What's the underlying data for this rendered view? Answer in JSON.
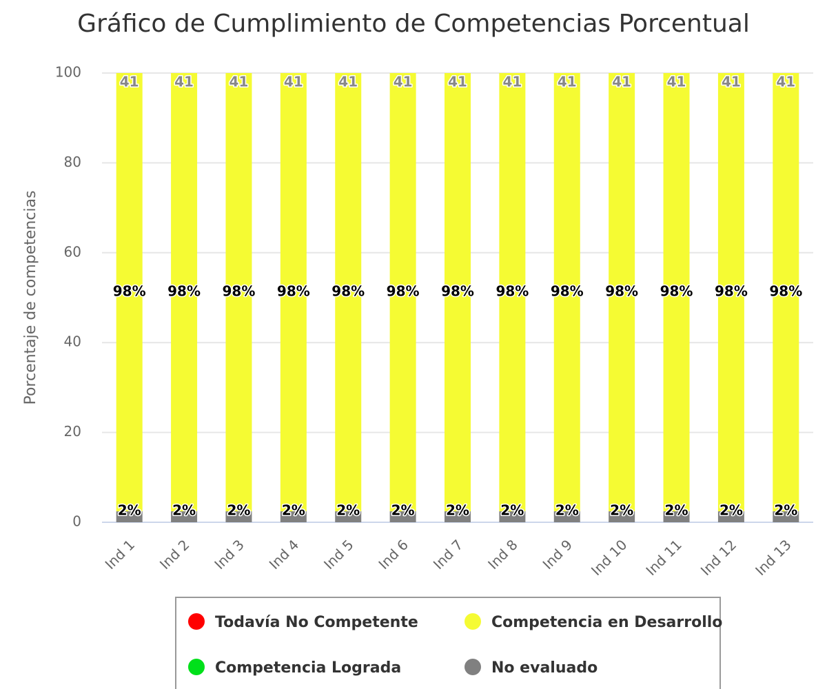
{
  "chart_data": {
    "type": "stacked_percent_bar",
    "title": "Gráfico de Cumplimiento de Competencias Porcentual",
    "y_axis_label": "Porcentaje de competencias",
    "categories": [
      "Ind 1",
      "Ind 2",
      "Ind 3",
      "Ind 4",
      "Ind 5",
      "Ind 6",
      "Ind 7",
      "Ind 8",
      "Ind 9",
      "Ind 10",
      "Ind 11",
      "Ind 12",
      "Ind 13"
    ],
    "series": [
      {
        "name": "Todavía No Competente",
        "color": "#ff0000",
        "values": [
          0,
          0,
          0,
          0,
          0,
          0,
          0,
          0,
          0,
          0,
          0,
          0,
          0
        ]
      },
      {
        "name": "Competencia en Desarrollo",
        "color": "#f5fb33",
        "values": [
          97.56,
          97.56,
          97.56,
          97.56,
          97.56,
          97.56,
          97.56,
          97.56,
          97.56,
          97.56,
          97.56,
          97.56,
          97.56
        ],
        "value_labels": [
          "98%",
          "98%",
          "98%",
          "98%",
          "98%",
          "98%",
          "98%",
          "98%",
          "98%",
          "98%",
          "98%",
          "98%",
          "98%"
        ]
      },
      {
        "name": "Competencia Lograda",
        "color": "#00e01a",
        "values": [
          0,
          0,
          0,
          0,
          0,
          0,
          0,
          0,
          0,
          0,
          0,
          0,
          0
        ]
      },
      {
        "name": "No evaluado",
        "color": "#808080",
        "values": [
          2.44,
          2.44,
          2.44,
          2.44,
          2.44,
          2.44,
          2.44,
          2.44,
          2.44,
          2.44,
          2.44,
          2.44,
          2.44
        ],
        "value_labels": [
          "2%",
          "2%",
          "2%",
          "2%",
          "2%",
          "2%",
          "2%",
          "2%",
          "2%",
          "2%",
          "2%",
          "2%",
          "2%"
        ]
      }
    ],
    "stack_totals": [
      41,
      41,
      41,
      41,
      41,
      41,
      41,
      41,
      41,
      41,
      41,
      41,
      41
    ],
    "ylim": [
      0,
      100
    ],
    "yticks": [
      0,
      20,
      40,
      60,
      80,
      100
    ],
    "grid": true
  }
}
